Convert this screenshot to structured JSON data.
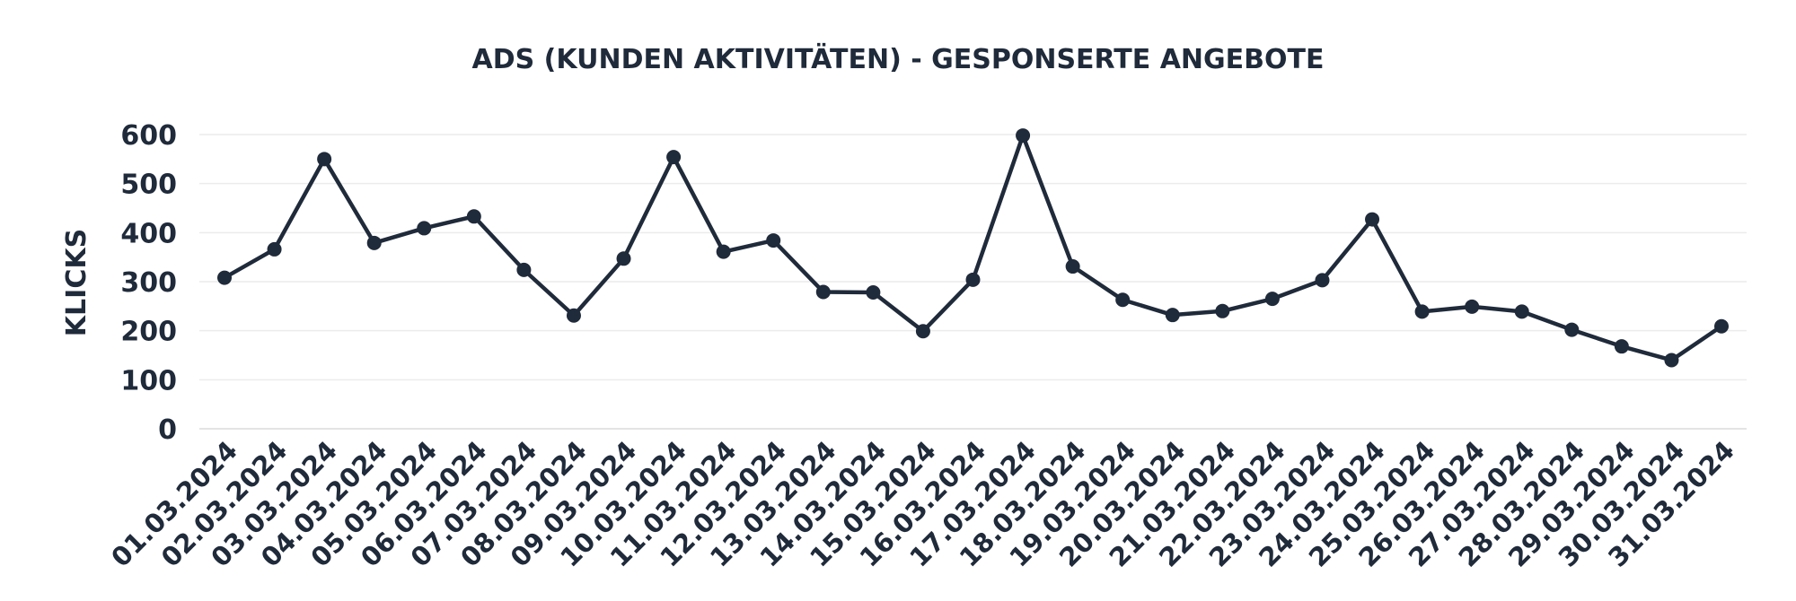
{
  "chart_data": {
    "type": "line",
    "title": "ADS (KUNDEN AKTIVITÄTEN) - GESPONSERTE ANGEBOTE",
    "ylabel": "KLICKS",
    "xlabel": "",
    "ylim": [
      0,
      600
    ],
    "yticks": [
      "0",
      "100",
      "200",
      "300",
      "400",
      "500",
      "600"
    ],
    "grid": true,
    "categories": [
      "01.03.2024",
      "02.03.2024",
      "03.03.2024",
      "04.03.2024",
      "05.03.2024",
      "06.03.2024",
      "07.03.2024",
      "08.03.2024",
      "09.03.2024",
      "10.03.2024",
      "11.03.2024",
      "12.03.2024",
      "13.03.2024",
      "14.03.2024",
      "15.03.2024",
      "16.03.2024",
      "17.03.2024",
      "18.03.2024",
      "19.03.2024",
      "20.03.2024",
      "21.03.2024",
      "22.03.2024",
      "23.03.2024",
      "24.03.2024",
      "25.03.2024",
      "26.03.2024",
      "27.03.2024",
      "28.03.2024",
      "29.03.2024",
      "30.03.2024",
      "31.03.2024"
    ],
    "series": [
      {
        "values": [
          308,
          366,
          550,
          379,
          409,
          433,
          324,
          231,
          347,
          554,
          361,
          384,
          279,
          278,
          199,
          304,
          598,
          331,
          263,
          232,
          240,
          265,
          303,
          427,
          239,
          249,
          239,
          202,
          168,
          140,
          209
        ],
        "color": "#1f2a3a"
      }
    ]
  }
}
